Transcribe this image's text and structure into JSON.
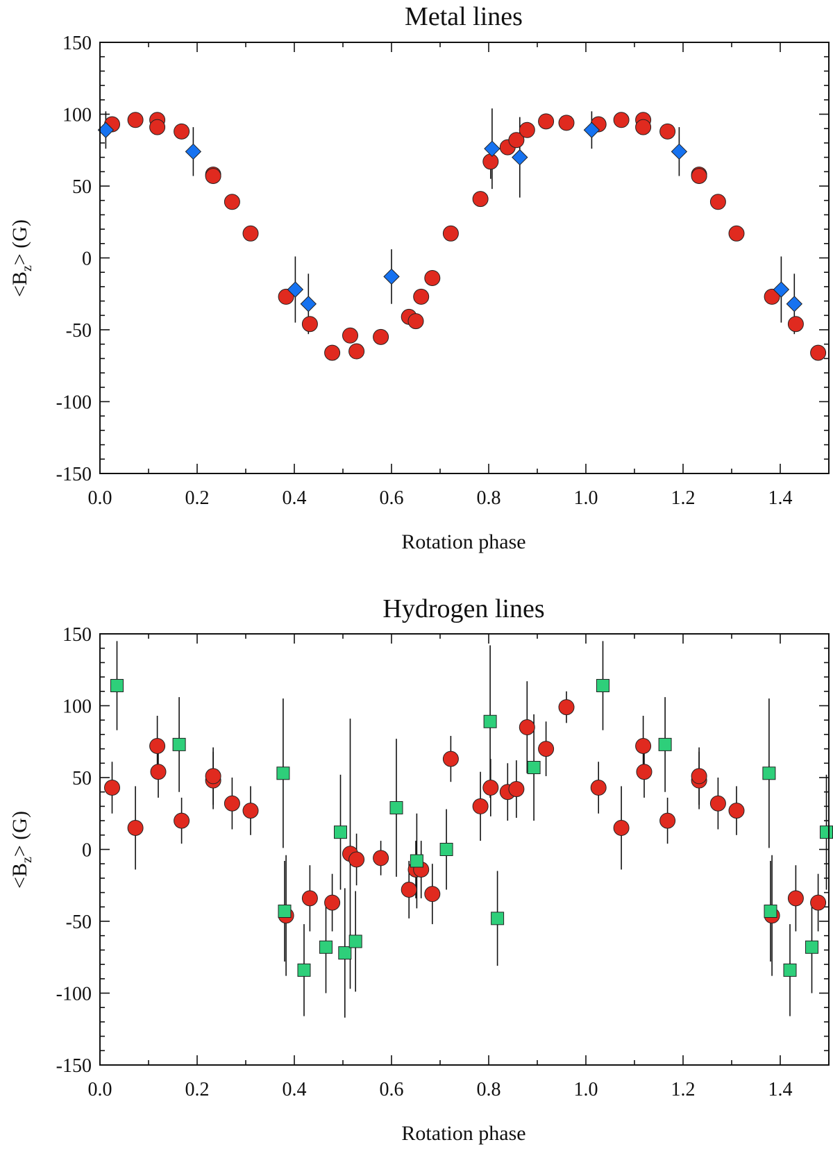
{
  "chart_data": [
    {
      "type": "scatter",
      "title": "Metal lines",
      "xlabel": "Rotation phase",
      "ylabel_main": "<B",
      "ylabel_sub": "z",
      "ylabel_rest": "> (G)",
      "xlim": [
        0.0,
        1.5
      ],
      "ylim": [
        -150,
        150
      ],
      "xticks": [
        0.0,
        0.2,
        0.4,
        0.6,
        0.8,
        1.0,
        1.2,
        1.4
      ],
      "xtick_labels": [
        "0.0",
        "0.2",
        "0.4",
        "0.6",
        "0.8",
        "1.0",
        "1.2",
        "1.4"
      ],
      "yticks": [
        150,
        100,
        50,
        0,
        -50,
        -100,
        -150
      ],
      "ytick_labels": [
        "150",
        "100",
        "50",
        "0",
        "-50",
        "-100",
        "-150"
      ],
      "series": [
        {
          "name": "circles",
          "marker": "circle",
          "color": "#e02a1f",
          "points": [
            [
              0.025,
              93,
              0
            ],
            [
              0.073,
              96,
              0
            ],
            [
              0.118,
              96,
              0
            ],
            [
              0.118,
              91,
              0
            ],
            [
              0.168,
              88,
              0
            ],
            [
              0.233,
              58,
              0
            ],
            [
              0.233,
              57,
              0
            ],
            [
              0.272,
              39,
              0
            ],
            [
              0.31,
              17,
              0
            ],
            [
              0.383,
              -27,
              0
            ],
            [
              0.432,
              -46,
              0
            ],
            [
              0.478,
              -66,
              0
            ],
            [
              0.515,
              -54,
              0
            ],
            [
              0.528,
              -65,
              0
            ],
            [
              0.578,
              -55,
              0
            ],
            [
              0.636,
              -41,
              0
            ],
            [
              0.65,
              -44,
              0
            ],
            [
              0.661,
              -27,
              0
            ],
            [
              0.684,
              -14,
              0
            ],
            [
              0.722,
              17,
              0
            ],
            [
              0.783,
              41,
              0
            ],
            [
              0.804,
              67,
              12
            ],
            [
              0.839,
              77,
              0
            ],
            [
              0.857,
              82,
              0
            ],
            [
              0.879,
              89,
              0
            ],
            [
              0.918,
              95,
              0
            ],
            [
              0.96,
              94,
              0
            ],
            [
              1.026,
              93,
              0
            ],
            [
              1.073,
              96,
              0
            ],
            [
              1.118,
              96,
              0
            ],
            [
              1.118,
              91,
              0
            ],
            [
              1.168,
              88,
              0
            ],
            [
              1.233,
              58,
              0
            ],
            [
              1.233,
              57,
              0
            ],
            [
              1.272,
              39,
              0
            ],
            [
              1.31,
              17,
              0
            ],
            [
              1.383,
              -27,
              0
            ],
            [
              1.432,
              -46,
              0
            ],
            [
              1.478,
              -66,
              0
            ]
          ]
        },
        {
          "name": "diamonds",
          "marker": "diamond",
          "color": "#1672f0",
          "points": [
            [
              0.012,
              89,
              13
            ],
            [
              0.192,
              74,
              17
            ],
            [
              0.402,
              -22,
              23
            ],
            [
              0.429,
              -32,
              21
            ],
            [
              0.6,
              -13,
              19
            ],
            [
              0.807,
              76,
              28
            ],
            [
              0.864,
              70,
              28
            ],
            [
              1.012,
              89,
              13
            ],
            [
              1.192,
              74,
              17
            ],
            [
              1.402,
              -22,
              23
            ],
            [
              1.429,
              -32,
              21
            ]
          ]
        }
      ]
    },
    {
      "type": "scatter",
      "title": "Hydrogen lines",
      "xlabel": "Rotation phase",
      "ylabel_main": "<B",
      "ylabel_sub": "z",
      "ylabel_rest": "> (G)",
      "xlim": [
        0.0,
        1.5
      ],
      "ylim": [
        -150,
        150
      ],
      "xticks": [
        0.0,
        0.2,
        0.4,
        0.6,
        0.8,
        1.0,
        1.2,
        1.4
      ],
      "xtick_labels": [
        "0.0",
        "0.2",
        "0.4",
        "0.6",
        "0.8",
        "1.0",
        "1.2",
        "1.4"
      ],
      "yticks": [
        150,
        100,
        50,
        0,
        -50,
        -100,
        -150
      ],
      "ytick_labels": [
        "150",
        "100",
        "50",
        "0",
        "-50",
        "-100",
        "-150"
      ],
      "series": [
        {
          "name": "circles",
          "marker": "circle",
          "color": "#e02a1f",
          "points": [
            [
              0.025,
              43,
              18
            ],
            [
              0.073,
              15,
              29
            ],
            [
              0.118,
              72,
              21
            ],
            [
              0.12,
              54,
              18
            ],
            [
              0.168,
              20,
              16
            ],
            [
              0.233,
              48,
              20
            ],
            [
              0.233,
              51,
              20
            ],
            [
              0.272,
              32,
              18
            ],
            [
              0.31,
              27,
              17
            ],
            [
              0.383,
              -46,
              42
            ],
            [
              0.432,
              -34,
              23
            ],
            [
              0.478,
              -37,
              20
            ],
            [
              0.515,
              -3,
              94
            ],
            [
              0.528,
              -7,
              18
            ],
            [
              0.578,
              -6,
              12
            ],
            [
              0.636,
              -28,
              20
            ],
            [
              0.65,
              -14,
              20
            ],
            [
              0.661,
              -14,
              20
            ],
            [
              0.684,
              -31,
              21
            ],
            [
              0.722,
              63,
              16
            ],
            [
              0.783,
              30,
              24
            ],
            [
              0.804,
              43,
              20
            ],
            [
              0.839,
              40,
              20
            ],
            [
              0.857,
              42,
              20
            ],
            [
              0.879,
              85,
              32
            ],
            [
              0.918,
              70,
              19
            ],
            [
              0.96,
              99,
              11
            ],
            [
              1.026,
              43,
              18
            ],
            [
              1.073,
              15,
              29
            ],
            [
              1.118,
              72,
              21
            ],
            [
              1.12,
              54,
              18
            ],
            [
              1.168,
              20,
              16
            ],
            [
              1.233,
              48,
              20
            ],
            [
              1.233,
              51,
              20
            ],
            [
              1.272,
              32,
              18
            ],
            [
              1.31,
              27,
              17
            ],
            [
              1.383,
              -46,
              42
            ],
            [
              1.432,
              -34,
              23
            ],
            [
              1.478,
              -37,
              20
            ]
          ]
        },
        {
          "name": "squares",
          "marker": "square",
          "color": "#2ecf7a",
          "points": [
            [
              0.035,
              114,
              31
            ],
            [
              0.163,
              73,
              33
            ],
            [
              0.377,
              53,
              52
            ],
            [
              0.38,
              -43,
              35
            ],
            [
              0.42,
              -84,
              32
            ],
            [
              0.465,
              -68,
              32
            ],
            [
              0.495,
              12,
              40
            ],
            [
              0.504,
              -72,
              45
            ],
            [
              0.526,
              -64,
              35
            ],
            [
              0.61,
              29,
              48
            ],
            [
              0.652,
              -8,
              33
            ],
            [
              0.713,
              0,
              28
            ],
            [
              0.803,
              89,
              53
            ],
            [
              0.818,
              -48,
              33
            ],
            [
              0.893,
              57,
              37
            ],
            [
              1.035,
              114,
              31
            ],
            [
              1.163,
              73,
              33
            ],
            [
              1.377,
              53,
              52
            ],
            [
              1.38,
              -43,
              35
            ],
            [
              1.42,
              -84,
              32
            ],
            [
              1.465,
              -68,
              32
            ],
            [
              1.495,
              12,
              40
            ]
          ]
        }
      ]
    }
  ]
}
